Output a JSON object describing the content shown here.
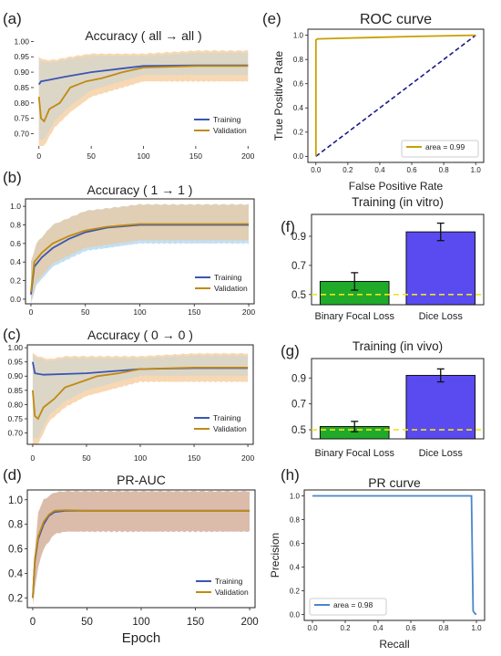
{
  "colors": {
    "training": "#3a56b4",
    "validation": "#c08a12",
    "band_orange": "#f3c38a",
    "band_blue": "#a9d3ef",
    "band_brown": "#cfa58f",
    "roc_curve": "#c8a000",
    "roc_diagonal": "#1a1a8a",
    "pr_curve": "#4a86c8",
    "bar_green": "#1faa2a",
    "bar_blue": "#5a4bf0",
    "dashed_yellow": "#f2e41a"
  },
  "chart_data": [
    {
      "id": "a",
      "panel_label": "(a)",
      "type": "line",
      "title": "Accuracy ( all → all )",
      "xlabel": "",
      "ylabel": "",
      "xlim": [
        -5,
        205
      ],
      "ylim": [
        0.66,
        1.01
      ],
      "xticks": [
        0,
        50,
        100,
        150,
        200
      ],
      "yticks": [
        0.7,
        0.75,
        0.8,
        0.85,
        0.9,
        0.95,
        1.0
      ],
      "ytick_labels": [
        "0.70",
        "0.75",
        "0.80",
        "0.85",
        "0.90",
        "0.95",
        "1.00"
      ],
      "legend_position": "bottom-right",
      "series": [
        {
          "name": "Training",
          "x": [
            0,
            2,
            10,
            25,
            50,
            75,
            100,
            150,
            200
          ],
          "y": [
            0.86,
            0.87,
            0.875,
            0.885,
            0.9,
            0.91,
            0.92,
            0.922,
            0.922
          ]
        },
        {
          "name": "Validation",
          "x": [
            0,
            2,
            5,
            10,
            20,
            30,
            45,
            60,
            80,
            100,
            150,
            200
          ],
          "y": [
            0.82,
            0.75,
            0.74,
            0.78,
            0.8,
            0.85,
            0.87,
            0.88,
            0.9,
            0.915,
            0.92,
            0.92
          ]
        }
      ],
      "band": {
        "x": [
          0,
          5,
          15,
          30,
          50,
          100,
          150,
          200
        ],
        "lower": [
          0.66,
          0.66,
          0.72,
          0.77,
          0.82,
          0.87,
          0.87,
          0.87
        ],
        "upper": [
          0.95,
          0.94,
          0.94,
          0.95,
          0.96,
          0.96,
          0.97,
          0.97
        ]
      }
    },
    {
      "id": "b",
      "panel_label": "(b)",
      "type": "line",
      "title": "Accuracy ( 1 → 1 )",
      "xlabel": "",
      "ylabel": "",
      "xlim": [
        -5,
        205
      ],
      "ylim": [
        -0.05,
        1.08
      ],
      "xticks": [
        0,
        50,
        100,
        150,
        200
      ],
      "yticks": [
        0.0,
        0.2,
        0.4,
        0.6,
        0.8,
        1.0
      ],
      "ytick_labels": [
        "0.0",
        "0.2",
        "0.4",
        "0.6",
        "0.8",
        "1.0"
      ],
      "legend_position": "bottom-right",
      "series": [
        {
          "name": "Training",
          "x": [
            0,
            3,
            10,
            20,
            35,
            50,
            70,
            100,
            150,
            200
          ],
          "y": [
            0.05,
            0.35,
            0.45,
            0.55,
            0.65,
            0.72,
            0.77,
            0.8,
            0.8,
            0.8
          ]
        },
        {
          "name": "Validation",
          "x": [
            0,
            3,
            10,
            20,
            35,
            50,
            70,
            100,
            150,
            200
          ],
          "y": [
            0.08,
            0.4,
            0.5,
            0.6,
            0.68,
            0.74,
            0.78,
            0.81,
            0.81,
            0.81
          ]
        }
      ],
      "band": {
        "x": [
          0,
          5,
          20,
          50,
          100,
          150,
          200
        ],
        "lower": [
          -0.05,
          0.15,
          0.35,
          0.52,
          0.6,
          0.6,
          0.6
        ],
        "upper": [
          0.4,
          0.6,
          0.8,
          0.95,
          1.02,
          1.02,
          1.02
        ]
      }
    },
    {
      "id": "c",
      "panel_label": "(c)",
      "type": "line",
      "title": "Accuracy ( 0 → 0 )",
      "xlabel": "",
      "ylabel": "",
      "xlim": [
        -5,
        205
      ],
      "ylim": [
        0.66,
        1.01
      ],
      "xticks": [
        0,
        50,
        100,
        150,
        200
      ],
      "yticks": [
        0.7,
        0.75,
        0.8,
        0.85,
        0.9,
        0.95,
        1.0
      ],
      "ytick_labels": [
        "0.70",
        "0.75",
        "0.80",
        "0.85",
        "0.90",
        "0.95",
        "1.00"
      ],
      "legend_position": "bottom-right",
      "series": [
        {
          "name": "Training",
          "x": [
            0,
            2,
            10,
            50,
            100,
            150,
            200
          ],
          "y": [
            0.95,
            0.91,
            0.905,
            0.91,
            0.925,
            0.928,
            0.928
          ]
        },
        {
          "name": "Validation",
          "x": [
            0,
            2,
            5,
            10,
            20,
            30,
            45,
            60,
            80,
            100,
            150,
            200
          ],
          "y": [
            0.85,
            0.76,
            0.75,
            0.79,
            0.82,
            0.86,
            0.88,
            0.9,
            0.91,
            0.925,
            0.93,
            0.93
          ]
        }
      ],
      "band": {
        "x": [
          0,
          5,
          15,
          30,
          50,
          100,
          150,
          200
        ],
        "lower": [
          0.66,
          0.66,
          0.74,
          0.79,
          0.83,
          0.88,
          0.88,
          0.88
        ],
        "upper": [
          0.98,
          0.97,
          0.96,
          0.97,
          0.97,
          0.97,
          0.98,
          0.98
        ]
      }
    },
    {
      "id": "d",
      "panel_label": "(d)",
      "type": "line",
      "title": "PR-AUC",
      "xlabel": "Epoch",
      "ylabel": "",
      "xlim": [
        -5,
        205
      ],
      "ylim": [
        0.12,
        1.08
      ],
      "xticks": [
        0,
        50,
        100,
        150,
        200
      ],
      "yticks": [
        0.2,
        0.4,
        0.6,
        0.8,
        1.0
      ],
      "ytick_labels": [
        "0.2",
        "0.4",
        "0.6",
        "0.8",
        "1.0"
      ],
      "legend_position": "bottom-right",
      "series": [
        {
          "name": "Training",
          "x": [
            0,
            2,
            5,
            10,
            15,
            20,
            30,
            50,
            100,
            150,
            200
          ],
          "y": [
            0.2,
            0.5,
            0.68,
            0.8,
            0.87,
            0.9,
            0.91,
            0.91,
            0.91,
            0.91,
            0.91
          ]
        },
        {
          "name": "Validation",
          "x": [
            0,
            2,
            5,
            10,
            15,
            20,
            30,
            50,
            100,
            150,
            200
          ],
          "y": [
            0.2,
            0.52,
            0.7,
            0.82,
            0.88,
            0.91,
            0.915,
            0.91,
            0.91,
            0.91,
            0.91
          ]
        }
      ],
      "band": {
        "x": [
          0,
          5,
          10,
          20,
          30,
          50,
          100,
          150,
          200
        ],
        "lower": [
          0.15,
          0.45,
          0.6,
          0.72,
          0.74,
          0.74,
          0.74,
          0.74,
          0.74
        ],
        "upper": [
          0.35,
          0.9,
          1.0,
          1.06,
          1.07,
          1.07,
          1.07,
          1.07,
          1.07
        ]
      }
    },
    {
      "id": "e",
      "panel_label": "(e)",
      "type": "line",
      "title": "ROC curve",
      "xlabel": "False Positive Rate",
      "ylabel": "True Positive Rate",
      "xlim": [
        -0.05,
        1.05
      ],
      "ylim": [
        -0.05,
        1.05
      ],
      "xticks": [
        0.0,
        0.2,
        0.4,
        0.6,
        0.8,
        1.0
      ],
      "yticks": [
        0.0,
        0.2,
        0.4,
        0.6,
        0.8,
        1.0
      ],
      "xtick_labels": [
        "0.0",
        "0.2",
        "0.4",
        "0.6",
        "0.8",
        "1.0"
      ],
      "ytick_labels": [
        "0.0",
        "0.2",
        "0.4",
        "0.6",
        "0.8",
        "1.0"
      ],
      "legend_position": "bottom-right",
      "series": [
        {
          "name": "area = 0.99",
          "x": [
            0,
            0.0,
            0.01,
            0.3,
            0.6,
            1.0
          ],
          "y": [
            0,
            0.96,
            0.97,
            0.98,
            0.99,
            1.0
          ]
        }
      ],
      "reference_line": {
        "x": [
          0,
          1
        ],
        "y": [
          0,
          1
        ]
      }
    },
    {
      "id": "f",
      "panel_label": "(f)",
      "type": "bar",
      "title": "Training (in vitro)",
      "xlabel": "",
      "ylabel": "",
      "ylim": [
        0.43,
        1.05
      ],
      "yticks": [
        0.5,
        0.7,
        0.9
      ],
      "ytick_labels": [
        "0.5",
        "0.7",
        "0.9"
      ],
      "categories": [
        "Binary Focal Loss",
        "Dice Loss"
      ],
      "values": [
        0.59,
        0.93
      ],
      "errors": [
        0.06,
        0.06
      ],
      "reference_line_y": 0.5
    },
    {
      "id": "g",
      "panel_label": "(g)",
      "type": "bar",
      "title": "Training (in vivo)",
      "xlabel": "",
      "ylabel": "",
      "ylim": [
        0.43,
        1.05
      ],
      "yticks": [
        0.5,
        0.7,
        0.9
      ],
      "ytick_labels": [
        "0.5",
        "0.7",
        "0.9"
      ],
      "categories": [
        "Binary Focal Loss",
        "Dice Loss"
      ],
      "values": [
        0.525,
        0.92
      ],
      "errors": [
        0.04,
        0.05
      ],
      "reference_line_y": 0.5
    },
    {
      "id": "h",
      "panel_label": "(h)",
      "type": "line",
      "title": "PR curve",
      "xlabel": "Recall",
      "ylabel": "Precision",
      "xlim": [
        -0.05,
        1.05
      ],
      "ylim": [
        -0.05,
        1.05
      ],
      "xticks": [
        0.0,
        0.2,
        0.4,
        0.6,
        0.8,
        1.0
      ],
      "yticks": [
        0.0,
        0.2,
        0.4,
        0.6,
        0.8,
        1.0
      ],
      "xtick_labels": [
        "0.0",
        "0.2",
        "0.4",
        "0.6",
        "0.8",
        "1.0"
      ],
      "ytick_labels": [
        "0.0",
        "0.2",
        "0.4",
        "0.6",
        "0.8",
        "1.0"
      ],
      "legend_position": "bottom-left",
      "series": [
        {
          "name": "area = 0.98",
          "x": [
            0,
            0.97,
            0.975,
            0.98,
            0.99,
            1.0
          ],
          "y": [
            1.0,
            1.0,
            0.5,
            0.03,
            0.01,
            0.0
          ]
        }
      ]
    }
  ]
}
